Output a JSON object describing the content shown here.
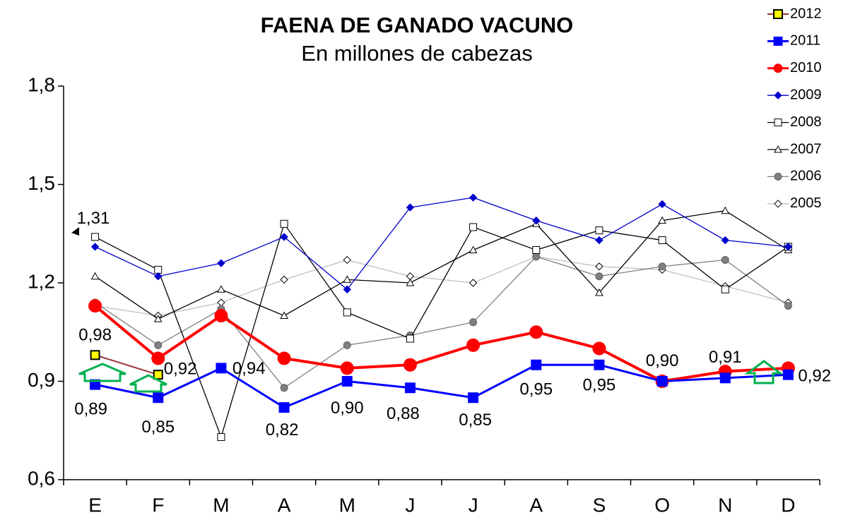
{
  "chart_data": {
    "type": "line",
    "title": "FAENA DE GANADO VACUNO",
    "subtitle": "En millones de cabezas",
    "categories": [
      "E",
      "F",
      "M",
      "A",
      "M",
      "J",
      "J",
      "A",
      "S",
      "O",
      "N",
      "D"
    ],
    "ylim": [
      0.6,
      1.8
    ],
    "yticks": [
      {
        "value": 0.6,
        "label": "0,6"
      },
      {
        "value": 0.9,
        "label": "0,9"
      },
      {
        "value": 1.2,
        "label": "1,2"
      },
      {
        "value": 1.5,
        "label": "1,5"
      },
      {
        "value": 1.8,
        "label": "1,8"
      }
    ],
    "grid": false,
    "legend": "top-right",
    "series": [
      {
        "name": "2012",
        "color": "#993333",
        "marker": "square",
        "marker_fill": "#ffff00",
        "marker_stroke": "#000000",
        "values": [
          0.98,
          0.92,
          null,
          null,
          null,
          null,
          null,
          null,
          null,
          null,
          null,
          null
        ],
        "value_labels": [
          "0,98",
          "0,92",
          null,
          null,
          null,
          null,
          null,
          null,
          null,
          null,
          null,
          null
        ]
      },
      {
        "name": "2011",
        "color": "#0000ff",
        "marker": "square",
        "marker_fill": "#0000ff",
        "marker_stroke": "#0000ff",
        "values": [
          0.89,
          0.85,
          0.94,
          0.82,
          0.9,
          0.88,
          0.85,
          0.95,
          0.95,
          0.9,
          0.91,
          0.92
        ],
        "value_labels": [
          "0,89",
          "0,85",
          "0,94",
          "0,82",
          "0,90",
          "0,88",
          "0,85",
          "0,95",
          "0,95",
          "0,90",
          "0,91",
          "0,92"
        ]
      },
      {
        "name": "2010",
        "color": "#ff0000",
        "marker": "circle",
        "marker_fill": "#ff0000",
        "marker_stroke": "#ff0000",
        "values": [
          1.13,
          0.97,
          1.1,
          0.97,
          0.94,
          0.95,
          1.01,
          1.05,
          1.0,
          0.9,
          0.93,
          0.94
        ]
      },
      {
        "name": "2009",
        "color": "#0000cc",
        "marker": "diamond",
        "marker_fill": "#0000cc",
        "marker_stroke": "#0000cc",
        "values": [
          1.31,
          1.22,
          1.26,
          1.34,
          1.18,
          1.43,
          1.46,
          1.39,
          1.33,
          1.44,
          1.33,
          1.31
        ],
        "value_labels": [
          "1,31",
          null,
          null,
          null,
          null,
          null,
          null,
          null,
          null,
          null,
          null,
          null
        ]
      },
      {
        "name": "2008",
        "color": "#000000",
        "marker": "square",
        "marker_fill": "#ffffff",
        "marker_stroke": "#000000",
        "values": [
          1.34,
          1.24,
          0.73,
          1.38,
          1.11,
          1.03,
          1.37,
          1.3,
          1.36,
          1.33,
          1.18,
          1.31
        ]
      },
      {
        "name": "2007",
        "color": "#000000",
        "marker": "triangle",
        "marker_fill": "#ffffff",
        "marker_stroke": "#000000",
        "values": [
          1.22,
          1.09,
          1.18,
          1.1,
          1.21,
          1.2,
          1.3,
          1.38,
          1.17,
          1.39,
          1.42,
          1.3
        ]
      },
      {
        "name": "2006",
        "color": "#808080",
        "marker": "circle",
        "marker_fill": "#808080",
        "marker_stroke": "#606060",
        "values": [
          1.14,
          1.01,
          1.12,
          0.88,
          1.01,
          1.04,
          1.08,
          1.28,
          1.22,
          1.25,
          1.27,
          1.13
        ]
      },
      {
        "name": "2005",
        "color": "#c0c0c0",
        "marker": "diamond",
        "marker_fill": "#ffffff",
        "marker_stroke": "#000000",
        "values": [
          1.13,
          1.1,
          1.14,
          1.21,
          1.27,
          1.22,
          1.2,
          1.28,
          1.25,
          1.24,
          1.19,
          1.14
        ]
      }
    ]
  }
}
